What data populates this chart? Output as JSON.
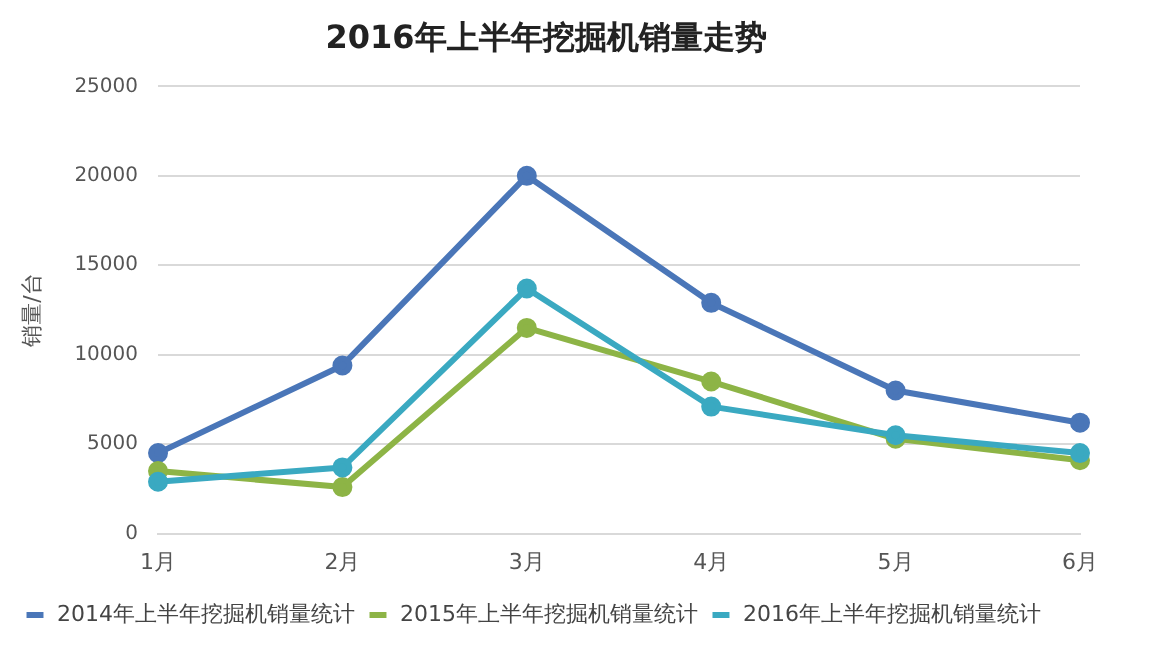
{
  "chart_data": {
    "type": "line",
    "title": "2016年上半年挖掘机销量走势",
    "ylabel": "销量/台",
    "categories": [
      "1月",
      "2月",
      "3月",
      "4月",
      "5月",
      "6月"
    ],
    "series": [
      {
        "name": "2014年上半年挖掘机销量统计",
        "color": "#4a76b8",
        "values": [
          4500,
          9400,
          20000,
          12900,
          8000,
          6200
        ]
      },
      {
        "name": "2015年上半年挖掘机销量统计",
        "color": "#8db446",
        "values": [
          3500,
          2600,
          11500,
          8500,
          5300,
          4100
        ]
      },
      {
        "name": "2016年上半年挖掘机销量统计",
        "color": "#3aa9c1",
        "values": [
          2900,
          3700,
          13700,
          7100,
          5500,
          4500
        ]
      }
    ],
    "ylim": [
      0,
      25000
    ],
    "yticks": [
      0,
      5000,
      10000,
      15000,
      20000,
      25000
    ],
    "grid": "y",
    "legend": "bottom",
    "marker": "circle",
    "line_style": "solid"
  }
}
